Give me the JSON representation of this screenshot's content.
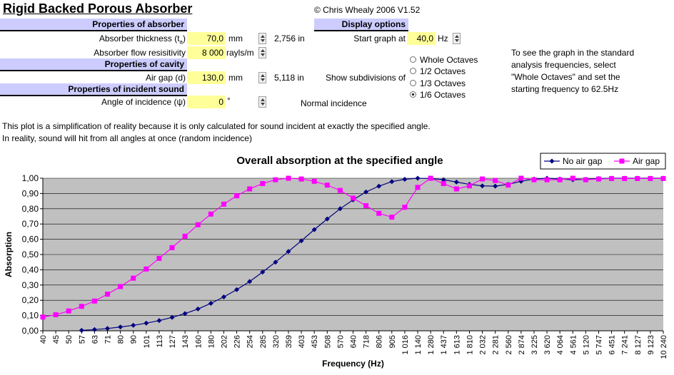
{
  "header": {
    "title": "Rigid Backed Porous Absorber",
    "copyright": "© Chris Whealy 2006  V1.52"
  },
  "absorber": {
    "section_label": "Properties of absorber",
    "thickness_label": "Absorber thickness (t",
    "thickness_sub": "a",
    "thickness_label_end": ")",
    "thickness_value": "70,0",
    "thickness_unit": "mm",
    "thickness_inches": "2,756  in",
    "flow_label": "Absorber flow resisitivity",
    "flow_value": "8 000",
    "flow_unit": "rayls/m"
  },
  "cavity": {
    "section_label": "Properties of cavity",
    "gap_label": "Air gap (d)",
    "gap_value": "130,0",
    "gap_unit": "mm",
    "gap_inches": "5,118  in"
  },
  "incident": {
    "section_label": "Properties of incident sound",
    "angle_label": "Angle of incidence (ψ)",
    "angle_value": "0",
    "angle_unit": "°",
    "incidence_text": "Normal incidence"
  },
  "display": {
    "section_label": "Display options",
    "start_label": "Start graph at",
    "start_value": "40,0",
    "start_unit": "Hz",
    "subdiv_label": "Show subdivisions of",
    "options": [
      "Whole Octaves",
      "1/2 Octaves",
      "1/3 Octaves",
      "1/6 Octaves"
    ],
    "selected": "1/6 Octaves",
    "hint": [
      "To see the graph in the standard",
      "analysis frequencies, select",
      "\"Whole Octaves\" and set the",
      "starting frequency to 62.5Hz"
    ]
  },
  "notes": {
    "line1": "This plot is a simplification of reality because it is only calculated for sound incident at exactly the specified angle.",
    "line2": "In reality, sound will hit from all angles at once (random incidence)"
  },
  "colors": {
    "section_bg": "#ccccff",
    "input_bg": "#ffff99",
    "plot_bg": "#c0c0c0",
    "no_air_gap": "#000080",
    "air_gap": "#ff00ff"
  },
  "chart_data": {
    "type": "line",
    "title": "Overall absorption at the specified angle",
    "xlabel": "Frequency (Hz)",
    "ylabel": "Absorption",
    "ylim": [
      0,
      1
    ],
    "yticks": [
      "0,00",
      "0,10",
      "0,20",
      "0,30",
      "0,40",
      "0,50",
      "0,60",
      "0,70",
      "0,80",
      "0,90",
      "1,00"
    ],
    "grid": true,
    "legend": "top-right",
    "categories": [
      "40",
      "45",
      "50",
      "57",
      "63",
      "71",
      "80",
      "90",
      "101",
      "113",
      "127",
      "143",
      "160",
      "180",
      "202",
      "226",
      "254",
      "285",
      "320",
      "359",
      "403",
      "453",
      "508",
      "570",
      "640",
      "718",
      "806",
      "905",
      "1 016",
      "1 140",
      "1 280",
      "1 437",
      "1 613",
      "1 810",
      "2 032",
      "2 281",
      "2 560",
      "2 874",
      "3 225",
      "3 620",
      "4 064",
      "4 561",
      "5 120",
      "5 747",
      "6 451",
      "7 241",
      "8 127",
      "9 123",
      "10 240"
    ],
    "series": [
      {
        "name": "No air gap",
        "values": [
          null,
          null,
          null,
          0.003,
          0.008,
          0.015,
          0.025,
          0.036,
          0.05,
          0.067,
          0.088,
          0.113,
          0.143,
          0.18,
          0.222,
          0.27,
          0.323,
          0.385,
          0.45,
          0.52,
          0.59,
          0.663,
          0.733,
          0.8,
          0.858,
          0.91,
          0.948,
          0.978,
          0.993,
          1.0,
          0.998,
          0.99,
          0.975,
          0.96,
          0.95,
          0.948,
          0.96,
          0.98,
          0.995,
          1.0,
          0.995,
          0.99,
          0.993,
          0.998,
          1.0,
          1.0,
          1.0,
          1.0,
          1.0
        ]
      },
      {
        "name": "Air gap",
        "values": [
          0.09,
          0.105,
          0.13,
          0.16,
          0.195,
          0.24,
          0.29,
          0.345,
          0.405,
          0.475,
          0.545,
          0.62,
          0.695,
          0.765,
          0.83,
          0.885,
          0.93,
          0.965,
          0.99,
          1.0,
          0.995,
          0.98,
          0.955,
          0.92,
          0.87,
          0.82,
          0.77,
          0.745,
          0.81,
          0.94,
          1.0,
          0.965,
          0.93,
          0.95,
          0.995,
          0.985,
          0.955,
          1.0,
          0.99,
          0.99,
          0.99,
          1.0,
          0.99,
          0.995,
          0.998,
          0.998,
          0.998,
          0.998,
          0.998
        ]
      }
    ]
  }
}
